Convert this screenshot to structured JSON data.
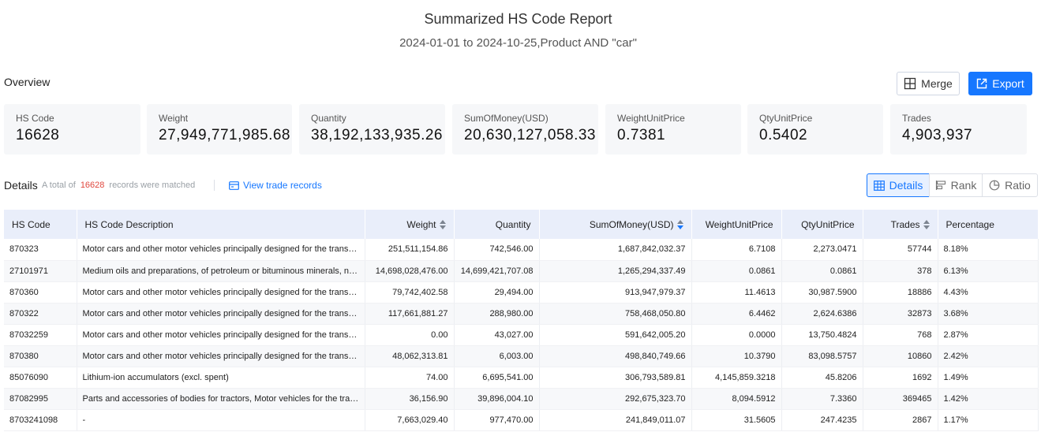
{
  "header": {
    "title": "Summarized HS Code Report",
    "subtitle": "2024-01-01 to 2024-10-25,Product AND \"car\""
  },
  "overview": {
    "label": "Overview",
    "merge_label": "Merge",
    "export_label": "Export",
    "cards": [
      {
        "label": "HS Code",
        "value": "16628"
      },
      {
        "label": "Weight",
        "value": "27,949,771,985.68"
      },
      {
        "label": "Quantity",
        "value": "38,192,133,935.26"
      },
      {
        "label": "SumOfMoney(USD)",
        "value": "20,630,127,058.33"
      },
      {
        "label": "WeightUnitPrice",
        "value": "0.7381"
      },
      {
        "label": "QtyUnitPrice",
        "value": "0.5402"
      },
      {
        "label": "Trades",
        "value": "4,903,937"
      }
    ]
  },
  "details": {
    "label": "Details",
    "meta_prefix": "A total of",
    "count": "16628",
    "meta_suffix": "records were matched",
    "view_link": "View trade records",
    "tabs": [
      "Details",
      "Rank",
      "Ratio"
    ],
    "active_tab": "Details"
  },
  "table": {
    "columns": [
      "HS Code",
      "HS Code Description",
      "Weight",
      "Quantity",
      "SumOfMoney(USD)",
      "WeightUnitPrice",
      "QtyUnitPrice",
      "Trades",
      "Percentage"
    ],
    "sorted_column": "SumOfMoney(USD)",
    "sort_direction": "descending",
    "rows": [
      [
        "870323",
        "Motor cars and other motor vehicles principally designed for the transport of persons",
        "251,511,154.86",
        "742,546.00",
        "1,687,842,032.37",
        "6.7108",
        "2,273.0471",
        "57744",
        "8.18%"
      ],
      [
        "27101971",
        "Medium oils and preparations, of petroleum or bituminous minerals, not containing biodiesel",
        "14,698,028,476.00",
        "14,699,421,707.08",
        "1,265,294,337.49",
        "0.0861",
        "0.0861",
        "378",
        "6.13%"
      ],
      [
        "870360",
        "Motor cars and other motor vehicles principally designed for the transport of persons",
        "79,742,402.58",
        "29,494.00",
        "913,947,979.37",
        "11.4613",
        "30,987.5900",
        "18886",
        "4.43%"
      ],
      [
        "870322",
        "Motor cars and other motor vehicles principally designed for the transport of persons",
        "117,661,881.27",
        "288,980.00",
        "758,468,050.80",
        "6.4462",
        "2,624.6386",
        "32873",
        "3.68%"
      ],
      [
        "87032259",
        "Motor cars and other motor vehicles principally designed for the transport of persons",
        "0.00",
        "43,027.00",
        "591,642,005.20",
        "0.0000",
        "13,750.4824",
        "768",
        "2.87%"
      ],
      [
        "870380",
        "Motor cars and other motor vehicles principally designed for the transport of persons",
        "48,062,313.81",
        "6,003.00",
        "498,840,749.66",
        "10.3790",
        "83,098.5757",
        "10860",
        "2.42%"
      ],
      [
        "85076090",
        "Lithium-ion accumulators (excl. spent)",
        "74.00",
        "6,695,541.00",
        "306,793,589.81",
        "4,145,859.3218",
        "45.8206",
        "1692",
        "1.49%"
      ],
      [
        "87082995",
        "Parts and accessories of bodies for tractors, Motor vehicles for the transport of ten or more persons",
        "36,156.90",
        "39,896,004.10",
        "292,675,323.70",
        "8,094.5912",
        "7.3360",
        "369465",
        "1.42%"
      ],
      [
        "8703241098",
        "-",
        "7,663,029.40",
        "977,470.00",
        "241,849,011.07",
        "31.5605",
        "247.4235",
        "2867",
        "1.17%"
      ]
    ]
  },
  "colors": {
    "accent": "#1677ff",
    "count": "#e0483e",
    "header_bg": "#e9eefa",
    "card_bg": "#f6f7f9"
  },
  "icons": {
    "merge": "merge-icon",
    "export": "export-icon",
    "view": "card-icon",
    "details": "table-icon",
    "rank": "bar-rank-icon",
    "ratio": "pie-icon"
  }
}
